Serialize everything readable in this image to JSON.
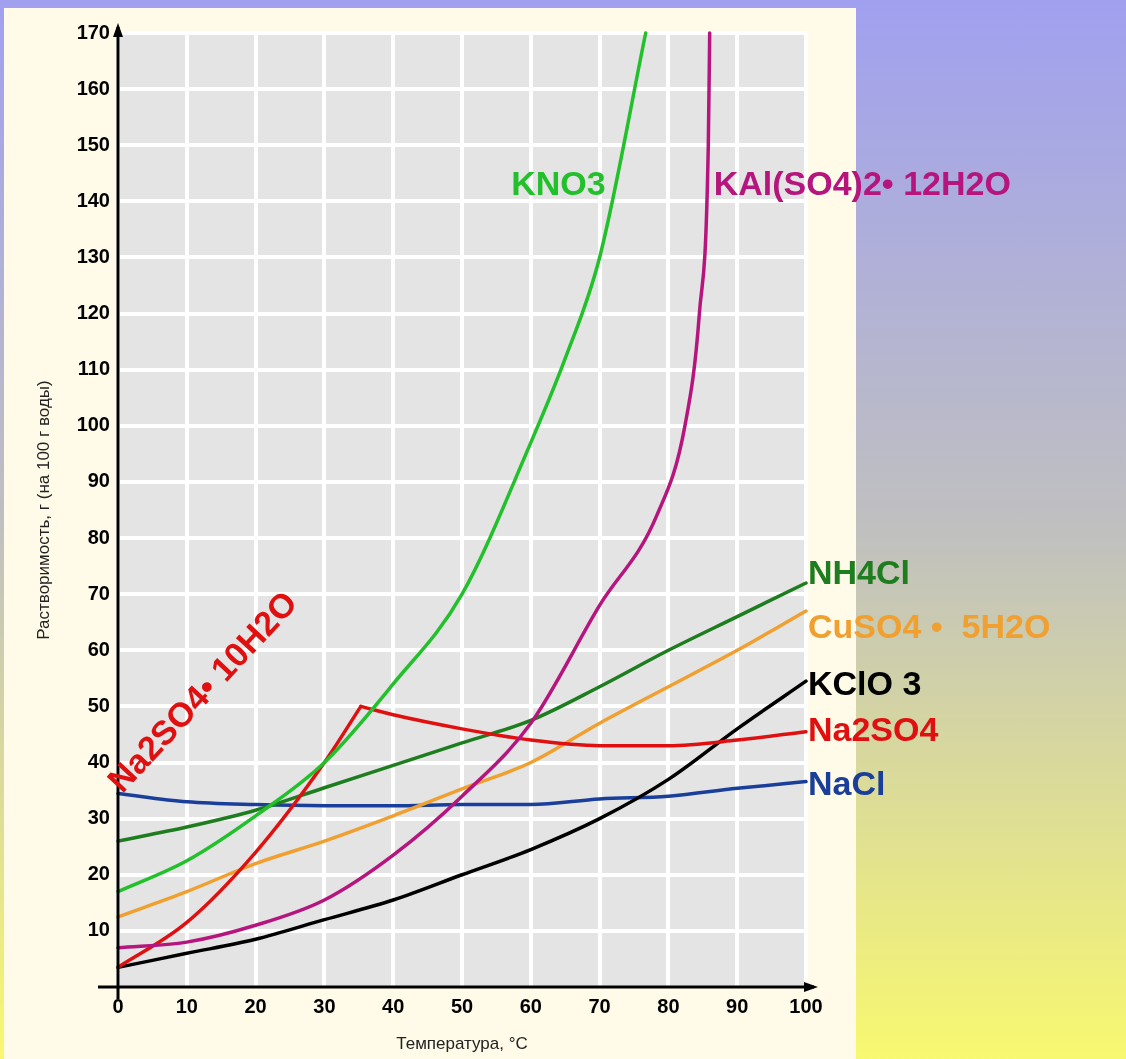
{
  "chart_data": {
    "type": "line",
    "xlabel": "Температура, °C",
    "ylabel": "Растворимость, г (на 100 г воды)",
    "xlim": [
      0,
      100
    ],
    "ylim": [
      0,
      170
    ],
    "xticks": [
      0,
      10,
      20,
      30,
      40,
      50,
      60,
      70,
      80,
      90,
      100
    ],
    "yticks": [
      10,
      20,
      30,
      40,
      50,
      60,
      70,
      80,
      90,
      100,
      110,
      120,
      130,
      140,
      150,
      160,
      170
    ],
    "grid": true,
    "legend": false,
    "marker": "none",
    "line_style": "solid",
    "series": [
      {
        "name": "KNO3",
        "color": "#22c02a",
        "x": [
          0,
          10,
          20,
          30,
          40,
          50,
          60,
          65,
          70,
          76.7
        ],
        "values": [
          17,
          22.5,
          30.5,
          40,
          54,
          70,
          97,
          112,
          130,
          170
        ]
      },
      {
        "name": "KAl(SO4)2• 12H2O",
        "color": "#b5157d",
        "x": [
          0,
          10,
          20,
          30,
          40,
          50,
          60,
          70,
          78.3,
          82.4,
          84.5,
          85.8,
          86
        ],
        "values": [
          7,
          8,
          11,
          15.5,
          23.5,
          34,
          47,
          68,
          84,
          100,
          120,
          150,
          170
        ]
      },
      {
        "name": "Na2SO4• 10H2O",
        "color": "#e01010",
        "x": [
          0,
          10,
          20,
          30,
          35.3
        ],
        "values": [
          3.5,
          11.5,
          24,
          40,
          50
        ]
      },
      {
        "name": "Na2SO4",
        "color": "#e01010",
        "x": [
          35.3,
          40,
          50,
          60,
          70,
          80,
          90,
          100
        ],
        "values": [
          50,
          48.5,
          46,
          44,
          43,
          43,
          44,
          45.5
        ]
      },
      {
        "name": "NH4Cl",
        "color": "#1e7d1e",
        "x": [
          0,
          10,
          20,
          30,
          40,
          50,
          60,
          70,
          80,
          90,
          100
        ],
        "values": [
          26,
          28.5,
          31.5,
          35.5,
          39.5,
          43.5,
          47.5,
          53.5,
          60,
          66,
          72
        ]
      },
      {
        "name": "CuSO4 •  5H2O",
        "color": "#f0a030",
        "x": [
          0,
          10,
          20,
          30,
          40,
          50,
          60,
          70,
          80,
          90,
          100
        ],
        "values": [
          12.5,
          17,
          22,
          26,
          30.5,
          35.3,
          40,
          47,
          53.5,
          60,
          67
        ]
      },
      {
        "name": "KClO 3",
        "color": "#000000",
        "x": [
          0,
          10,
          20,
          30,
          40,
          50,
          60,
          70,
          80,
          90,
          100
        ],
        "values": [
          3.5,
          6,
          8.5,
          12,
          15.5,
          20,
          24.5,
          30,
          37,
          46,
          54.5
        ]
      },
      {
        "name": "NaCl",
        "color": "#1a3f9a",
        "x": [
          0,
          10,
          20,
          30,
          40,
          50,
          60,
          70,
          80,
          90,
          100
        ],
        "values": [
          34.5,
          33,
          32.5,
          32.3,
          32.3,
          32.5,
          32.5,
          33.5,
          34,
          35.4,
          36.6
        ]
      }
    ]
  }
}
